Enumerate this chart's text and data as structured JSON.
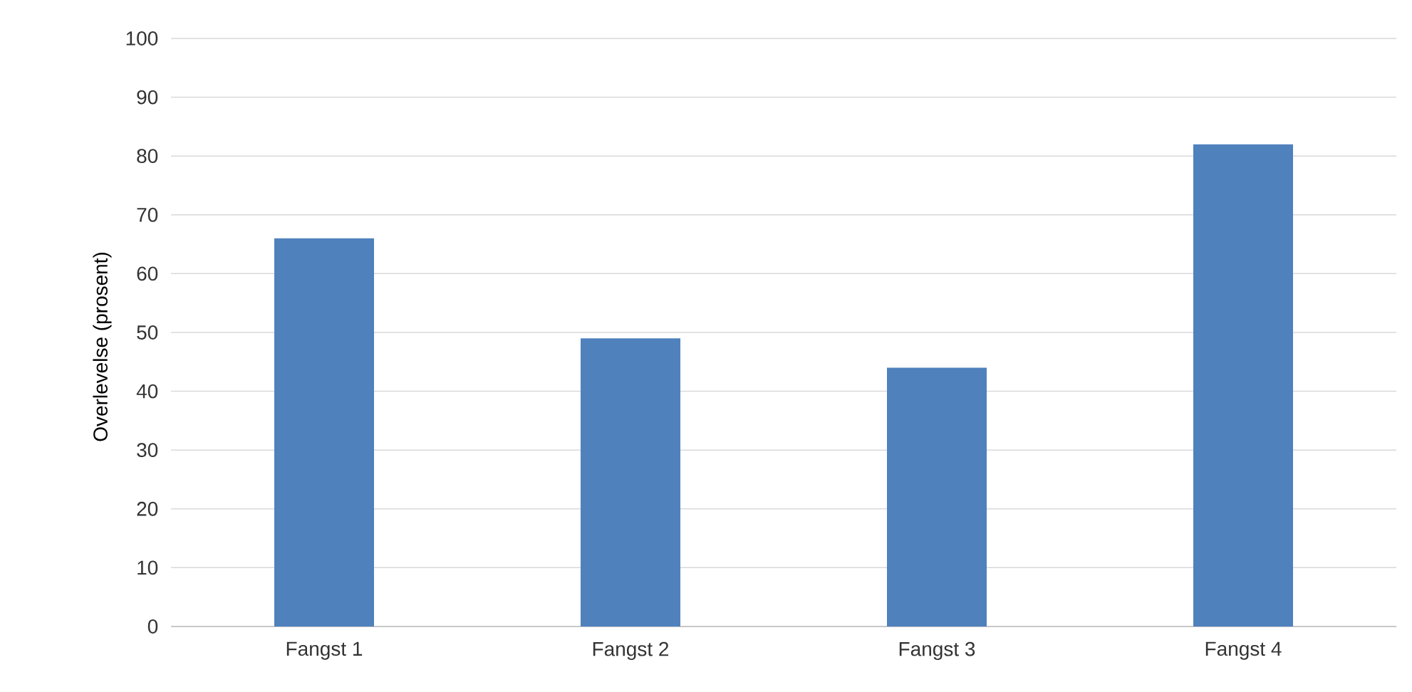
{
  "chart_data": {
    "type": "bar",
    "ylabel": "Overlevelse (prosent)",
    "categories": [
      "Fangst 1",
      "Fangst 2",
      "Fangst 3",
      "Fangst 4"
    ],
    "values": [
      66,
      49,
      44,
      82
    ],
    "color": "#4f81bd",
    "ylim": [
      0,
      100
    ],
    "yticks": [
      0,
      10,
      20,
      30,
      40,
      50,
      60,
      70,
      80,
      90,
      100
    ],
    "grid": "y"
  }
}
